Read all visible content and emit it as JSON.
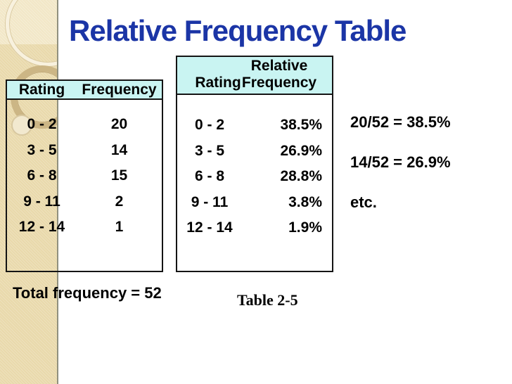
{
  "title": "Relative Frequency Table",
  "frequency_table": {
    "headers": {
      "rating": "Rating",
      "frequency": "Frequency"
    },
    "rows": [
      {
        "rating": "0 - 2",
        "frequency": "20"
      },
      {
        "rating": "3 - 5",
        "frequency": "14"
      },
      {
        "rating": "6 - 8",
        "frequency": "15"
      },
      {
        "rating": "9 - 11",
        "frequency": "2"
      },
      {
        "rating": "12 - 14",
        "frequency": "1"
      }
    ]
  },
  "relative_table": {
    "headers": {
      "rating": "Rating",
      "relative_line1": "Relative",
      "relative_line2": "Frequency"
    },
    "rows": [
      {
        "rating": "0 - 2",
        "relative_frequency": "38.5%"
      },
      {
        "rating": "3 - 5",
        "relative_frequency": "26.9%"
      },
      {
        "rating": "6 - 8",
        "relative_frequency": "28.8%"
      },
      {
        "rating": "9 - 11",
        "relative_frequency": "3.8%"
      },
      {
        "rating": "12 - 14",
        "relative_frequency": "1.9%"
      }
    ]
  },
  "annotations": {
    "line1": "20/52 = 38.5%",
    "line2": "14/52 = 26.9%",
    "line3": "etc."
  },
  "total_frequency_label": "Total frequency = 52",
  "table_caption": "Table 2-5",
  "colors": {
    "title_blue": "#1b35a6",
    "table_header_cyan": "#c9f4f2",
    "sidebar_beige": "#e9d9ab",
    "text_black": "#000000"
  }
}
